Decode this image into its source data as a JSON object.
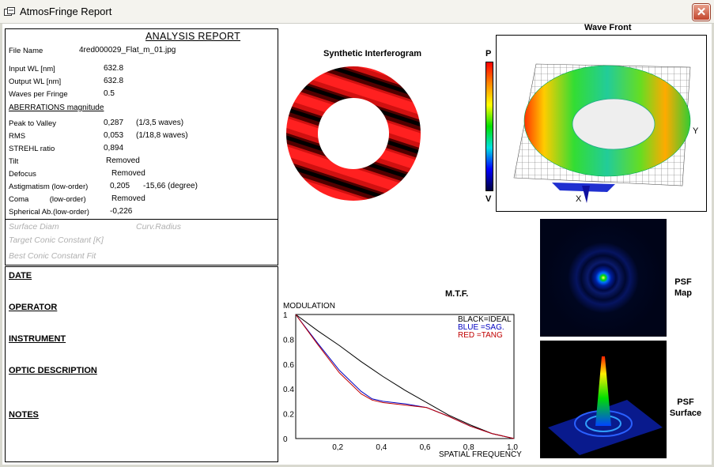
{
  "window": {
    "title": "AtmosFringe  Report",
    "close_symbol": "✕"
  },
  "report": {
    "title": "ANALYSIS  REPORT",
    "file_name_label": "File Name",
    "file_name": "4red000029_Flat_m_01.jpg",
    "input_wl_label": "Input  WL [nm]",
    "input_wl": "632.8",
    "output_wl_label": "Output WL [nm]",
    "output_wl": "632.8",
    "waves_label": "Waves per Fringe",
    "waves": "0.5",
    "aberrations_heading": "ABERRATIONS magnitude",
    "rows": [
      {
        "label": "Peak to Valley",
        "value": "0,287",
        "extra": "(1/3,5 waves)"
      },
      {
        "label": "RMS",
        "value": "0,053",
        "extra": "(1/18,8 waves)"
      },
      {
        "label": "STREHL ratio",
        "value": "0,894",
        "extra": ""
      },
      {
        "label": "Tilt",
        "value": "Removed",
        "extra": ""
      },
      {
        "label": "Defocus",
        "value": "Removed",
        "extra": ""
      },
      {
        "label": "Astigmatism  (low-order)",
        "value": "0,205",
        "extra": "-15,66  (degree)"
      },
      {
        "label": "Coma          (low-order)",
        "value": "Removed",
        "extra": ""
      },
      {
        "label": "Spherical Ab.(low-order)",
        "value": "-0,226",
        "extra": ""
      }
    ],
    "surface_diam": "Surface Diam",
    "curv_radius": "Curv.Radius",
    "target_conic": "Target Conic Constant [K]",
    "best_conic": "Best Conic Constant Fit"
  },
  "info": {
    "date": "DATE",
    "operator": "OPERATOR",
    "instrument": "INSTRUMENT",
    "optic_description": "OPTIC DESCRIPTION",
    "notes": "NOTES"
  },
  "interferogram": {
    "title": "Synthetic Interferogram",
    "fringe_color": "#e01010"
  },
  "colorbar": {
    "top_label": "P",
    "bottom_label": "V"
  },
  "wavefront": {
    "title": "Wave Front",
    "x_label": "X",
    "y_label": "Y"
  },
  "psf": {
    "map_label_1": "PSF",
    "map_label_2": "Map",
    "surface_label_1": "PSF",
    "surface_label_2": "Surface"
  },
  "mtf": {
    "title": "M.T.F.",
    "ylabel": "MODULATION",
    "xlabel": "SPATIAL FREQUENCY",
    "legend": [
      {
        "text": "BLACK=IDEAL",
        "color": "#000000"
      },
      {
        "text": "BLUE  =SAG.",
        "color": "#0000c0"
      },
      {
        "text": "RED    =TANG",
        "color": "#c00000"
      }
    ],
    "y_ticks": [
      "1",
      "0.8",
      "0.6",
      "0.4",
      "0.2",
      "0"
    ],
    "x_ticks": [
      "0,2",
      "0,4",
      "0,6",
      "0,8",
      "1,0"
    ]
  },
  "chart_data": {
    "type": "line",
    "title": "M.T.F.",
    "xlabel": "SPATIAL FREQUENCY",
    "ylabel": "MODULATION",
    "xlim": [
      0,
      1
    ],
    "ylim": [
      0,
      1
    ],
    "x": [
      0,
      0.1,
      0.2,
      0.3,
      0.35,
      0.4,
      0.5,
      0.6,
      0.7,
      0.8,
      0.9,
      1.0
    ],
    "series": [
      {
        "name": "BLACK=IDEAL",
        "color": "#000000",
        "values": [
          1,
          0.87,
          0.75,
          0.62,
          0.56,
          0.5,
          0.39,
          0.29,
          0.19,
          0.11,
          0.04,
          0
        ]
      },
      {
        "name": "BLUE  =SAG.",
        "color": "#0000c0",
        "values": [
          1,
          0.77,
          0.55,
          0.38,
          0.32,
          0.3,
          0.28,
          0.25,
          0.18,
          0.1,
          0.04,
          0
        ]
      },
      {
        "name": "RED    =TANG",
        "color": "#c00000",
        "values": [
          1,
          0.76,
          0.53,
          0.36,
          0.31,
          0.29,
          0.27,
          0.25,
          0.18,
          0.1,
          0.04,
          0
        ]
      }
    ]
  }
}
